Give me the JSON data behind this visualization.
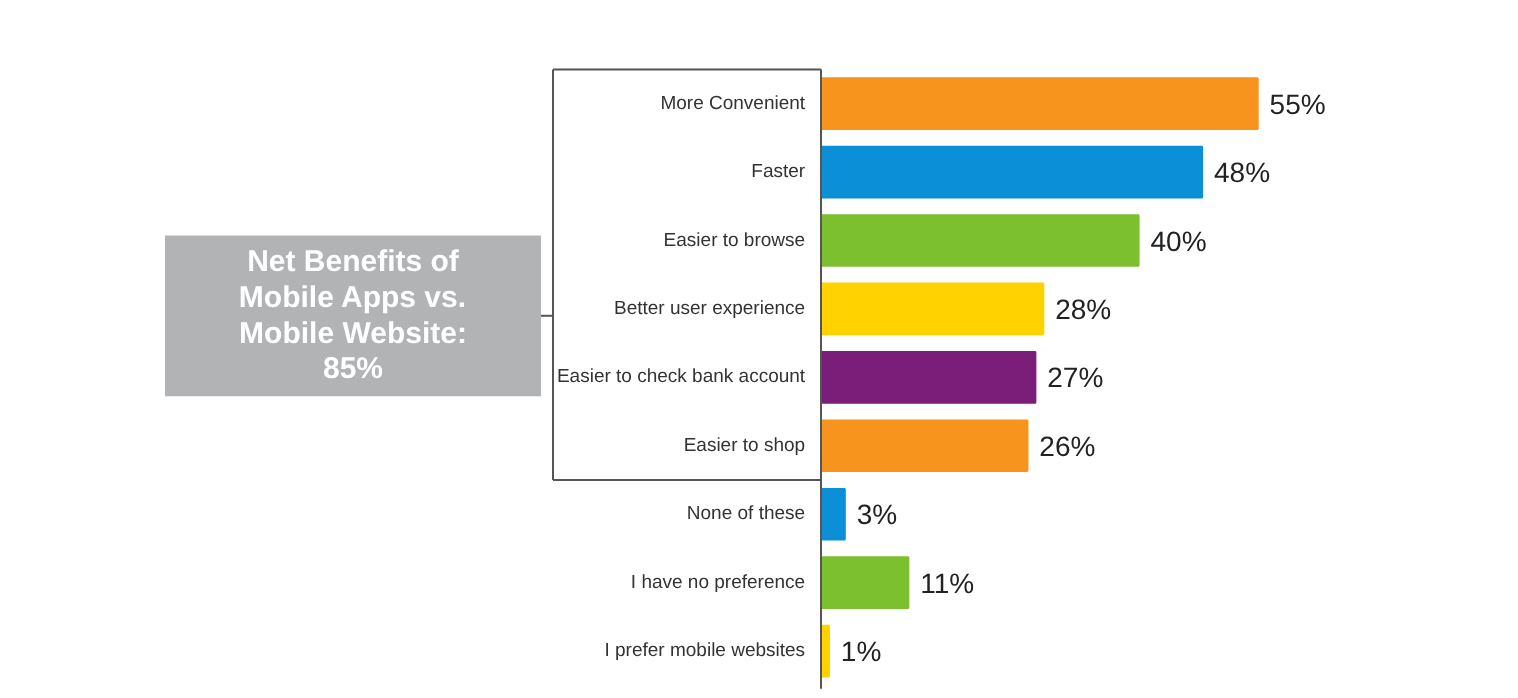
{
  "chart_data": {
    "type": "bar",
    "orientation": "horizontal",
    "categories": [
      "More Convenient",
      "Faster",
      "Easier to browse",
      "Better user experience",
      "Easier to check bank account",
      "Easier to shop",
      "None of these",
      "I have no preference",
      "I prefer mobile websites"
    ],
    "values": [
      55,
      48,
      40,
      28,
      27,
      26,
      3,
      11,
      1
    ],
    "value_labels": [
      "55%",
      "48%",
      "40%",
      "28%",
      "27%",
      "26%",
      "3%",
      "11%",
      "1%"
    ],
    "colors": [
      "#f7941d",
      "#0b8fd6",
      "#7cbf2f",
      "#ffd200",
      "#7b1e7a",
      "#f7941d",
      "#0b8fd6",
      "#7cbf2f",
      "#ffd200"
    ],
    "annotations": [
      "Net Benefits of Mobile Apps vs. Mobile Website: 85%"
    ],
    "grid": false
  }
}
